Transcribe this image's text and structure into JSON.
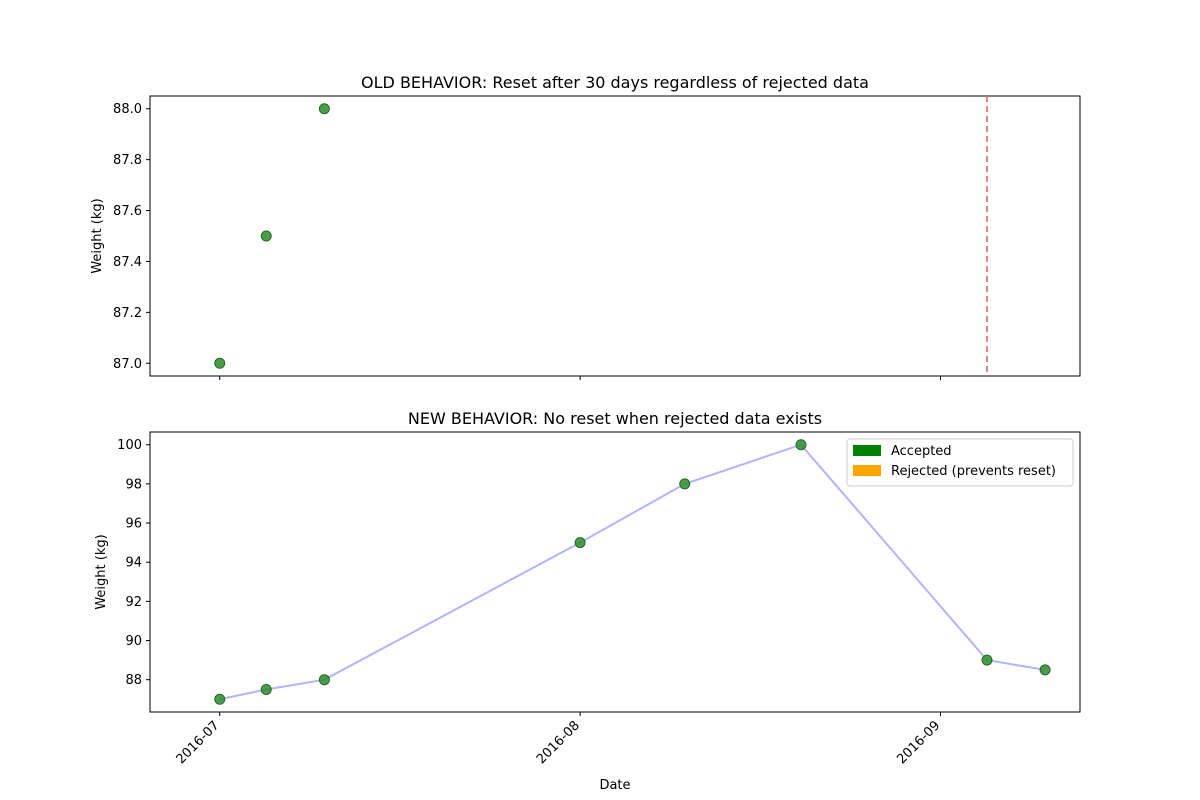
{
  "chart_data": [
    {
      "type": "scatter",
      "title": "OLD BEHAVIOR: Reset after 30 days regardless of rejected data",
      "xlabel": "",
      "ylabel": "Weight (kg)",
      "xlim": [
        "2016-06-25",
        "2016-09-13"
      ],
      "ylim": [
        86.95,
        88.05
      ],
      "yticks": [
        87.0,
        87.2,
        87.4,
        87.6,
        87.8,
        88.0
      ],
      "ytick_labels": [
        "87.0",
        "87.2",
        "87.4",
        "87.6",
        "87.8",
        "88.0"
      ],
      "xticks": [
        "2016-07-01",
        "2016-08-01",
        "2016-09-01"
      ],
      "xtick_labels": [
        "",
        "",
        ""
      ],
      "grid": false,
      "series": [
        {
          "kind": "points",
          "color": "#2e8b2e",
          "x": [
            "2016-07-01",
            "2016-07-05",
            "2016-07-10"
          ],
          "y": [
            87.0,
            87.5,
            88.0
          ]
        }
      ],
      "vlines": [
        {
          "x": "2016-09-05",
          "color": "#e06666",
          "style": "dashed"
        }
      ]
    },
    {
      "type": "line",
      "title": "NEW BEHAVIOR: No reset when rejected data exists",
      "xlabel": "Date",
      "ylabel": "Weight (kg)",
      "xlim": [
        "2016-06-25",
        "2016-09-13"
      ],
      "ylim": [
        86.35,
        100.65
      ],
      "yticks": [
        88,
        90,
        92,
        94,
        96,
        98,
        100
      ],
      "ytick_labels": [
        "88",
        "90",
        "92",
        "94",
        "96",
        "98",
        "100"
      ],
      "xticks": [
        "2016-07-01",
        "2016-08-01",
        "2016-09-01"
      ],
      "xtick_labels": [
        "2016-07",
        "2016-08",
        "2016-09"
      ],
      "grid": false,
      "legend_position": "top-right",
      "legend": [
        {
          "label": "Accepted",
          "color": "#008000"
        },
        {
          "label": "Rejected (prevents reset)",
          "color": "#ffa500"
        }
      ],
      "series": [
        {
          "kind": "line+points",
          "line_color": "#b3b3ff",
          "color": "#2e8b2e",
          "x": [
            "2016-07-01",
            "2016-07-05",
            "2016-07-10",
            "2016-08-01",
            "2016-08-10",
            "2016-08-20",
            "2016-09-05",
            "2016-09-10"
          ],
          "y": [
            87.0,
            87.5,
            88.0,
            95.0,
            98.0,
            100.0,
            89.0,
            88.5
          ]
        }
      ]
    }
  ]
}
